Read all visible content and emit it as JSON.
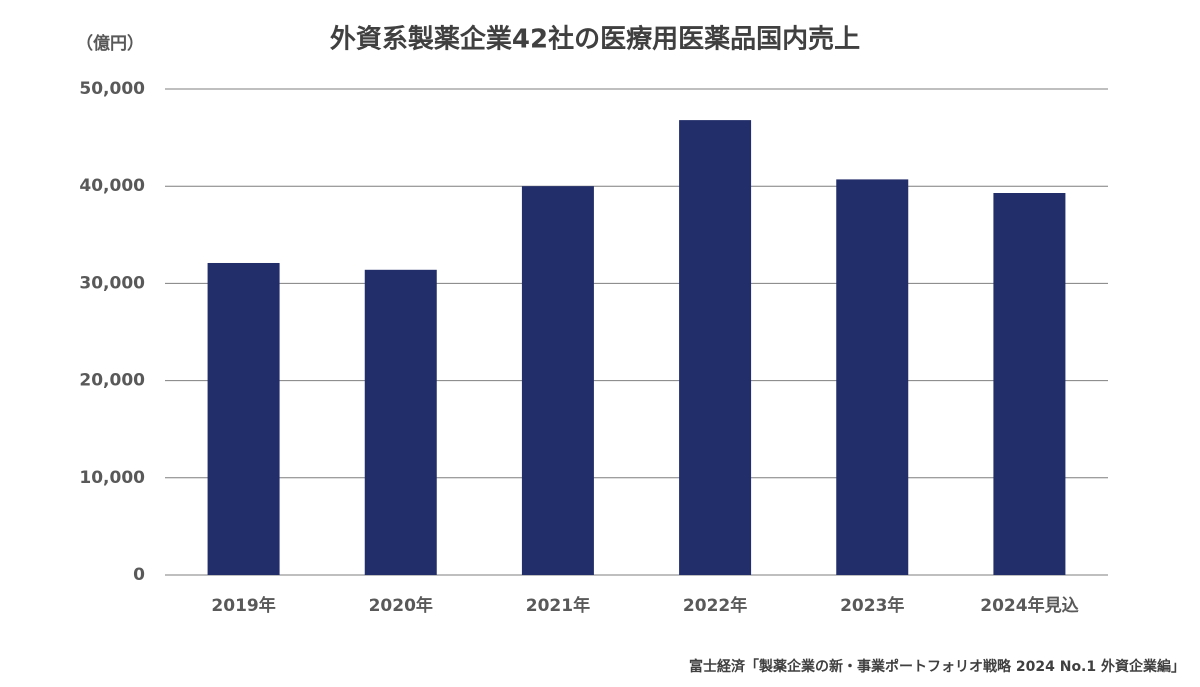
{
  "chart_data": {
    "type": "bar",
    "title": "外資系製薬企業42社の医療用医薬品国内売上",
    "unit_label": "（億円）",
    "source": "富士経済「製薬企業の新・事業ポートフォリオ戦略 2024 No.1 外資企業編」",
    "categories": [
      "2019年",
      "2020年",
      "2021年",
      "2022年",
      "2023年",
      "2024年見込"
    ],
    "values": [
      32100,
      31400,
      40000,
      46800,
      40700,
      39300
    ],
    "color": "#222e6a",
    "ylim": [
      0,
      50000
    ],
    "yticks": [
      0,
      {
        "value": 10000,
        "label": "10,000"
      },
      {
        "value": 20000,
        "label": "20,000"
      },
      {
        "value": 30000,
        "label": "30,000"
      },
      {
        "value": 40000,
        "label": "40,000"
      },
      {
        "value": 50000,
        "label": "50,000"
      }
    ],
    "grid": true
  }
}
